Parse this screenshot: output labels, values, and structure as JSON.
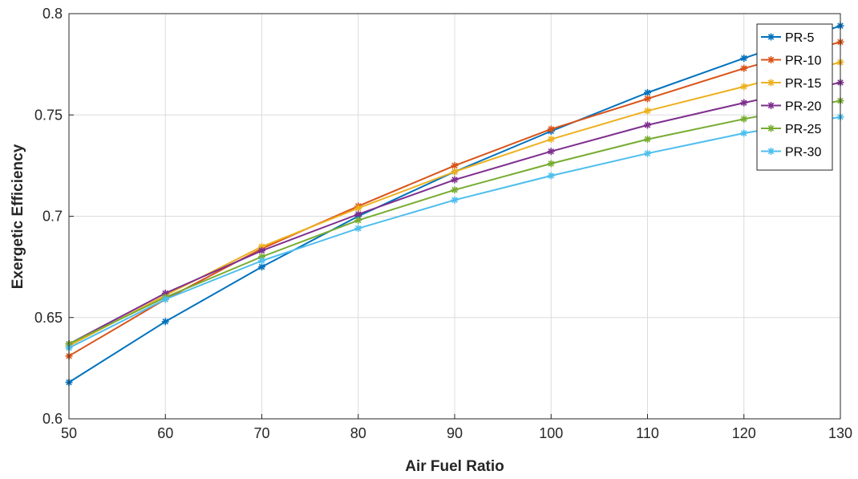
{
  "chart_data": {
    "type": "line",
    "xlabel": "Air Fuel Ratio",
    "ylabel": "Exergetic Efficiency",
    "xlim": [
      50,
      130
    ],
    "ylim": [
      0.6,
      0.8
    ],
    "x": [
      50,
      60,
      70,
      80,
      90,
      100,
      110,
      120,
      130
    ],
    "x_ticks": [
      "50",
      "60",
      "70",
      "80",
      "90",
      "100",
      "110",
      "120",
      "130"
    ],
    "y_ticks": [
      "0.6",
      "0.65",
      "0.7",
      "0.75",
      "0.8"
    ],
    "y_tick_values": [
      0.6,
      0.65,
      0.7,
      0.75,
      0.8
    ],
    "grid": true,
    "legend_position": "top-right",
    "series": [
      {
        "name": "PR-5",
        "color": "#0072BD",
        "values": [
          0.618,
          0.648,
          0.675,
          0.7,
          0.722,
          0.742,
          0.761,
          0.778,
          0.794
        ]
      },
      {
        "name": "PR-10",
        "color": "#D95319",
        "values": [
          0.631,
          0.659,
          0.684,
          0.705,
          0.725,
          0.743,
          0.758,
          0.773,
          0.786
        ]
      },
      {
        "name": "PR-15",
        "color": "#EDB120",
        "values": [
          0.636,
          0.661,
          0.685,
          0.704,
          0.722,
          0.738,
          0.752,
          0.764,
          0.776
        ]
      },
      {
        "name": "PR-20",
        "color": "#7E2F8E",
        "values": [
          0.637,
          0.662,
          0.683,
          0.701,
          0.718,
          0.732,
          0.745,
          0.756,
          0.766
        ]
      },
      {
        "name": "PR-25",
        "color": "#77AC30",
        "values": [
          0.637,
          0.66,
          0.68,
          0.698,
          0.713,
          0.726,
          0.738,
          0.748,
          0.757
        ]
      },
      {
        "name": "PR-30",
        "color": "#4DBEEE",
        "values": [
          0.635,
          0.659,
          0.678,
          0.694,
          0.708,
          0.72,
          0.731,
          0.741,
          0.749
        ]
      }
    ]
  }
}
